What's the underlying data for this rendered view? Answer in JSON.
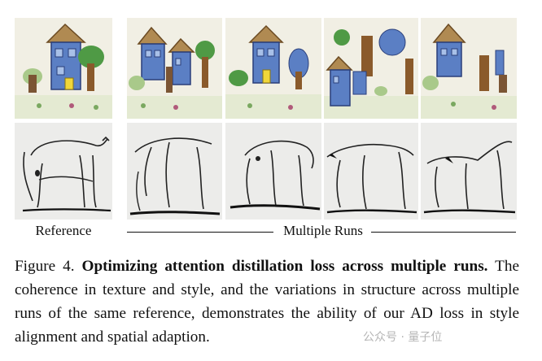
{
  "figure": {
    "reference_label": "Reference",
    "runs_label": "Multiple Runs",
    "caption_number": "Figure 4.",
    "caption_bold": "Optimizing attention distillation loss across multiple runs.",
    "caption_text": "The coherence in texture and style, and the variations in structure across multiple runs of the same reference, demonstrates the ability of our AD loss in style alignment and spatial adaption."
  },
  "images": {
    "top_row": [
      "house-drawing-reference",
      "house-drawing-run-1",
      "house-drawing-run-2",
      "house-drawing-run-3",
      "house-drawing-run-4"
    ],
    "bottom_row": [
      "bull-sketch-reference",
      "bull-sketch-run-1",
      "bull-sketch-run-2",
      "bull-sketch-run-3",
      "bull-sketch-run-4"
    ]
  },
  "watermark": "公众号 · 量子位"
}
